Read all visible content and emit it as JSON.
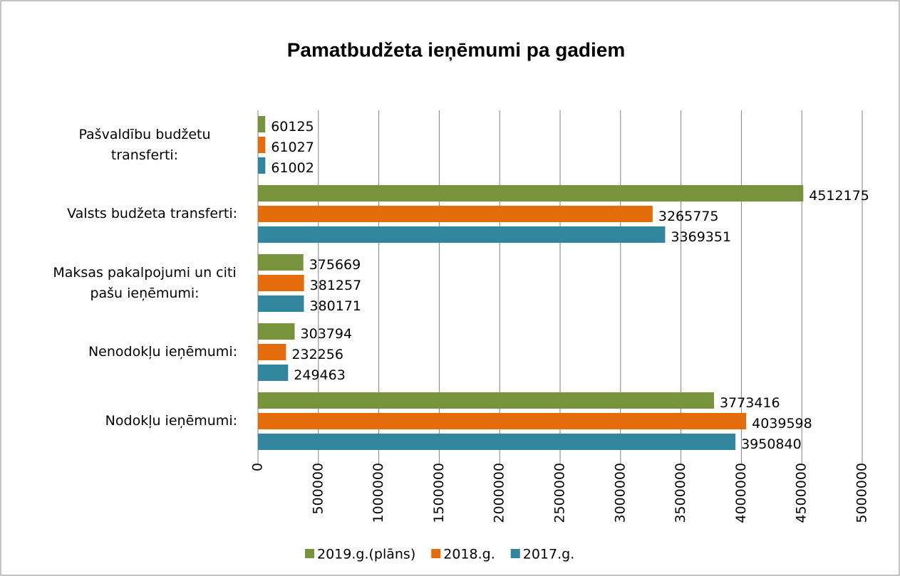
{
  "chart_data": {
    "type": "bar",
    "orientation": "horizontal",
    "title": "Pamatbudžeta ieņēmumi pa gadiem",
    "categories": [
      "Pašvaldību budžetu transferti:",
      "Valsts budžeta transferti:",
      "Maksas pakalpojumi un citi pašu ieņēmumi:",
      "Nenodokļu ieņēmumi:",
      "Nodokļu ieņēmumi:"
    ],
    "series": [
      {
        "name": "2019.g.(plāns)",
        "color": "#77933c",
        "values": [
          60125,
          4512175,
          375669,
          303794,
          3773416
        ]
      },
      {
        "name": "2018.g.",
        "color": "#e46c0a",
        "values": [
          61027,
          3265775,
          381257,
          232256,
          4039598
        ]
      },
      {
        "name": "2017.g.",
        "color": "#31859c",
        "values": [
          61002,
          3369351,
          380171,
          249463,
          3950840
        ]
      }
    ],
    "xlim": [
      0,
      5000000
    ],
    "xticks": [
      0,
      500000,
      1000000,
      1500000,
      2000000,
      2500000,
      3000000,
      3500000,
      4000000,
      4500000,
      5000000
    ],
    "grid": true,
    "legend": "bottom"
  }
}
